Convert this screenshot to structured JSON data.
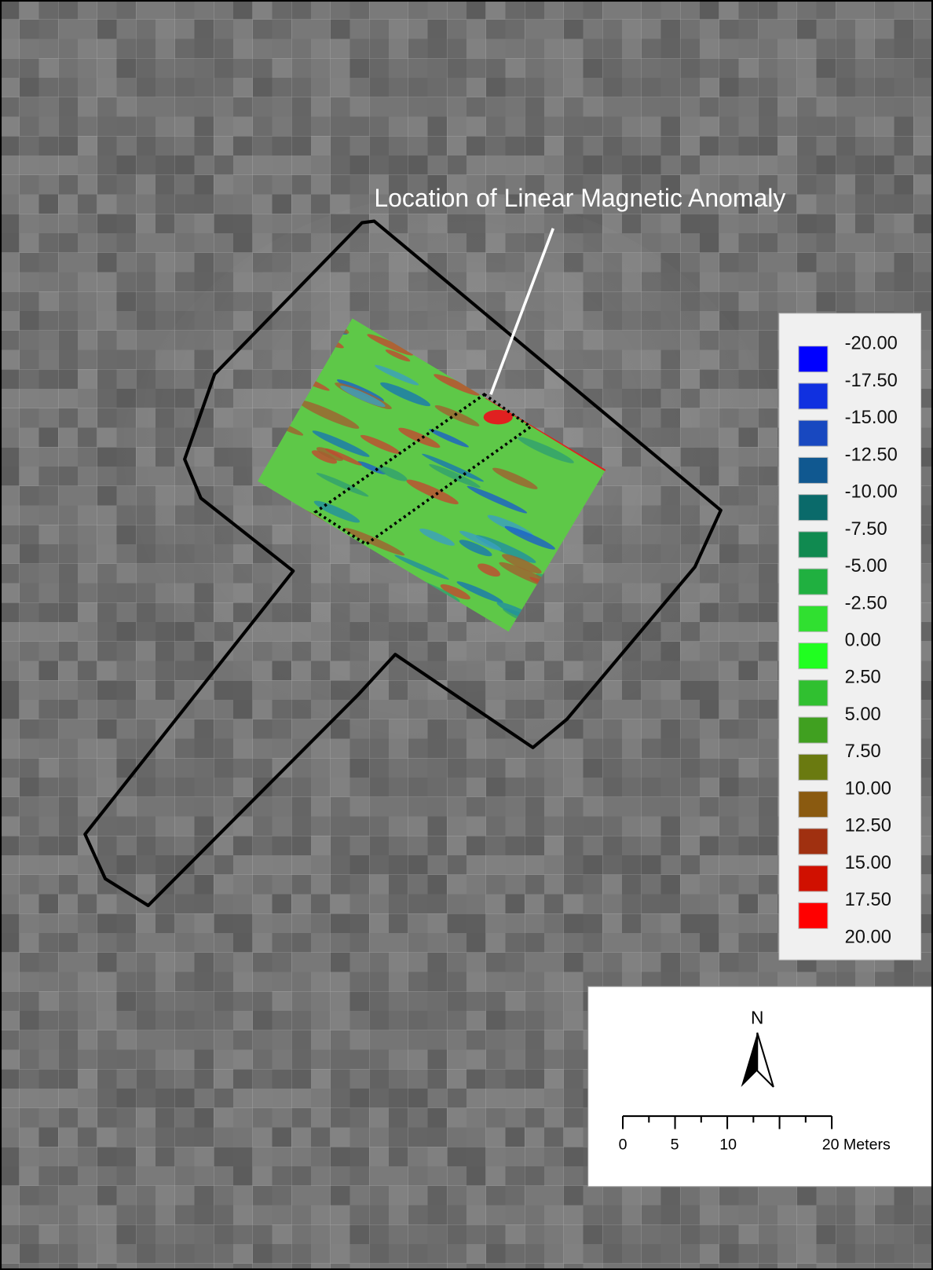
{
  "annotation": "Location of Linear Magnetic Anomaly",
  "legend": {
    "labels": [
      "-20.00",
      "-17.50",
      "-15.00",
      "-12.50",
      "-10.00",
      "-7.50",
      "-5.00",
      "-2.50",
      "0.00",
      "2.50",
      "5.00",
      "7.50",
      "10.00",
      "12.50",
      "15.00",
      "17.50",
      "20.00"
    ],
    "colors": [
      "#0000ff",
      "#1030e0",
      "#1848c0",
      "#105890",
      "#0a6a6a",
      "#108a50",
      "#20b040",
      "#30e030",
      "#20ff20",
      "#30c030",
      "#40a020",
      "#6a7a10",
      "#8a5a10",
      "#a03010",
      "#d01000",
      "#ff0000"
    ]
  },
  "north_arrow": {
    "label": "N"
  },
  "scale_bar": {
    "labels": [
      "0",
      "5",
      "10",
      "20 Meters"
    ]
  }
}
